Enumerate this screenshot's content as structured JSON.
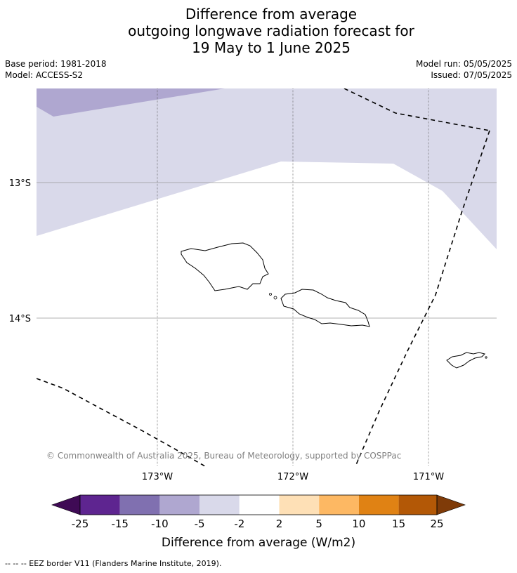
{
  "title": {
    "line1": "Difference from average",
    "line2": "outgoing longwave radiation forecast for",
    "line3": "19 May to 1 June 2025"
  },
  "meta": {
    "base_period": "Base period: 1981-2018",
    "model": "Model: ACCESS-S2",
    "model_run": "Model run: 05/05/2025",
    "issued": "Issued: 07/05/2025"
  },
  "map": {
    "lon_labels": [
      "173°W",
      "172°W",
      "171°W"
    ],
    "lat_labels": [
      "13°S",
      "14°S"
    ],
    "copyright": "© Commonwealth of Australia 2025, Bureau of Meteorology, supported by COSPPac",
    "features": [
      "Upolu-Savaii (Samoa)",
      "Tutuila (American Samoa)",
      "EEZ border"
    ]
  },
  "colorbar": {
    "ticks": [
      "-25",
      "-15",
      "-10",
      "-5",
      "-2",
      "2",
      "5",
      "10",
      "15",
      "25"
    ],
    "colors": [
      "#3f0a55",
      "#5e2590",
      "#8070b0",
      "#afa7d0",
      "#d9d9ea",
      "#ffffff",
      "#fee0b6",
      "#fdb863",
      "#e08214",
      "#b35806",
      "#7f3b08"
    ],
    "title": "Difference from average (W/m2)"
  },
  "legend": {
    "eez": "--  --  -- EEZ border V11 (Flanders Marine Institute, 2019)."
  }
}
